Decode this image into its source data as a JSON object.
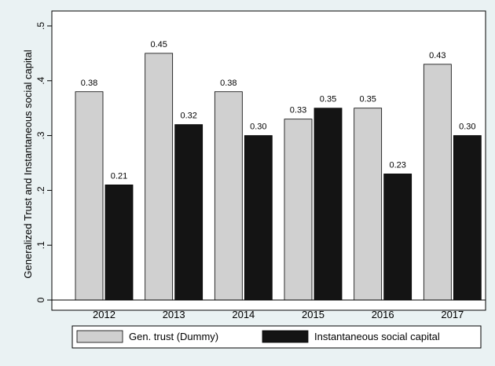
{
  "chart_data": {
    "type": "bar",
    "categories": [
      "2012",
      "2013",
      "2014",
      "2015",
      "2016",
      "2017"
    ],
    "series": [
      {
        "name": "Gen. trust (Dummy)",
        "values": [
          0.38,
          0.45,
          0.38,
          0.33,
          0.35,
          0.43
        ],
        "labels": [
          "0.38",
          "0.45",
          "0.38",
          "0.33",
          "0.35",
          "0.43"
        ],
        "color": "#d0d0d0"
      },
      {
        "name": "Instantaneous social capital",
        "values": [
          0.21,
          0.32,
          0.3,
          0.35,
          0.23,
          0.3
        ],
        "labels": [
          "0.21",
          "0.32",
          "0.30",
          "0.35",
          "0.23",
          "0.30"
        ],
        "color": "#141414"
      }
    ],
    "title": "",
    "xlabel": "",
    "ylabel": "Generalized Trust and Instantaneous social capital",
    "ylim": [
      0,
      0.5
    ],
    "yticks": [
      0,
      0.1,
      0.2,
      0.3,
      0.4,
      0.5
    ],
    "ytick_labels": [
      "0",
      ".1",
      ".2",
      ".3",
      ".4",
      ".5"
    ],
    "grid": false,
    "legend_position": "bottom"
  }
}
